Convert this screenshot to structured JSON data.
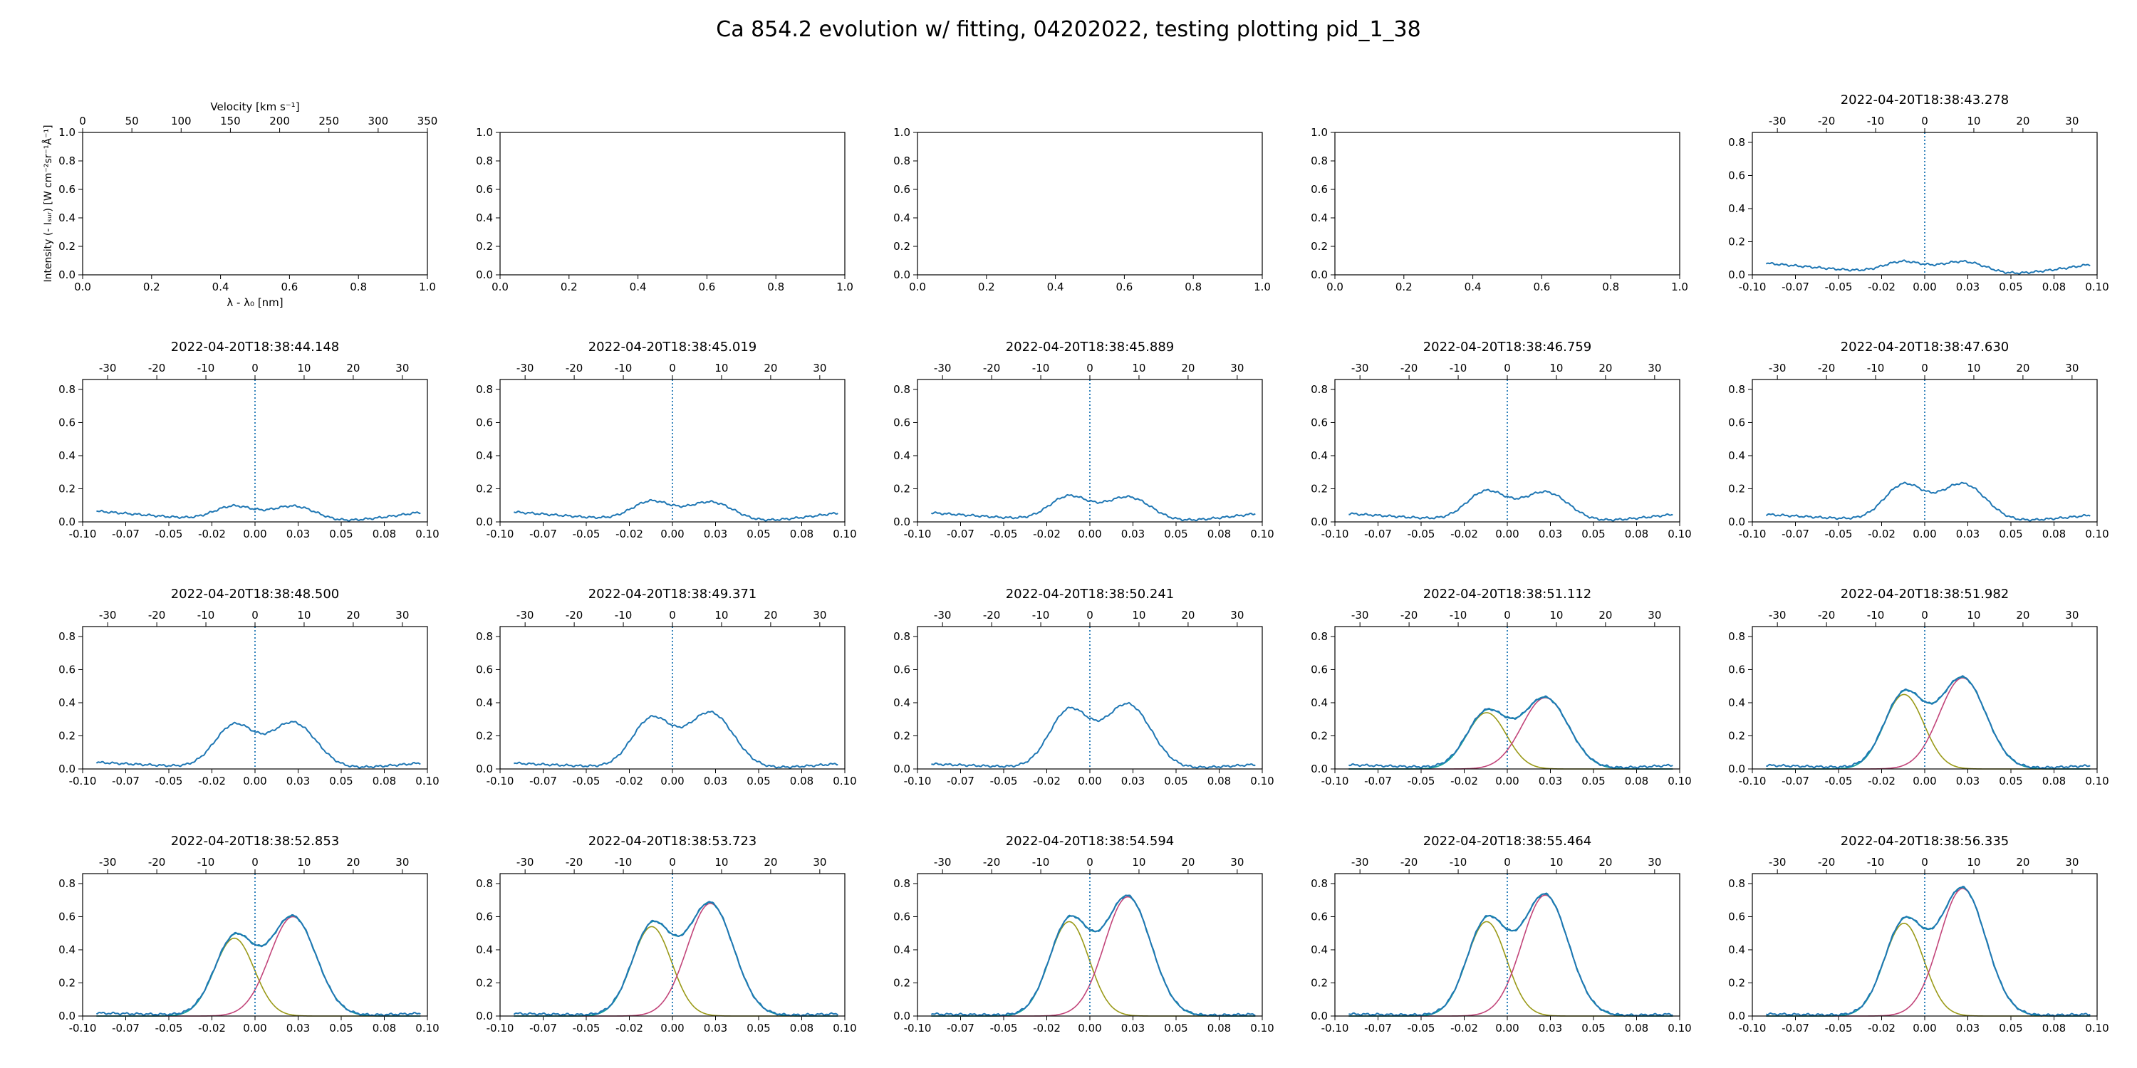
{
  "figure": {
    "title": "Ca 854.2 evolution w/ fitting, 04202022, testing plotting pid_1_38"
  },
  "chart_data": {
    "type": "line",
    "grid": false,
    "layout": "4x5 subplot grid",
    "empty_axis": {
      "x_ticks": [
        "0.0",
        "0.2",
        "0.4",
        "0.6",
        "0.8",
        "1.0"
      ],
      "y_ticks": [
        "0.0",
        "0.2",
        "0.4",
        "0.6",
        "0.8",
        "1.0"
      ],
      "xlim": [
        0,
        1
      ],
      "ylim": [
        0,
        1
      ],
      "top_axis_ticks": [
        "0",
        "50",
        "100",
        "150",
        "200",
        "250",
        "300",
        "350"
      ],
      "top_axis_lim": [
        0,
        350
      ],
      "top_axis_label": "Velocity [km s⁻¹]",
      "xlabel": "λ - λ₀ [nm]",
      "ylabel": "Intensity (- Iₛᵤᵣ) [W cm⁻²sr⁻¹Å⁻¹]"
    },
    "data_axis": {
      "x_ticks": [
        "-0.10",
        "-0.07",
        "-0.05",
        "-0.02",
        "0.00",
        "0.03",
        "0.05",
        "0.08",
        "0.10"
      ],
      "x_tick_values": [
        -0.1,
        -0.075,
        -0.05,
        -0.025,
        0.0,
        0.025,
        0.05,
        0.075,
        0.1
      ],
      "xlim": [
        -0.1,
        0.1
      ],
      "y_ticks": [
        "0.0",
        "0.2",
        "0.4",
        "0.6",
        "0.8"
      ],
      "ylim": [
        0,
        0.86
      ],
      "top_axis_ticks": [
        "-30",
        "-20",
        "-10",
        "0",
        "10",
        "20",
        "30"
      ],
      "top_axis_values": [
        -30,
        -20,
        -10,
        0,
        10,
        20,
        30
      ],
      "top_axis_lim": [
        -35.1,
        35.1
      ],
      "vline_x": 0.0
    },
    "series_colors": {
      "observed": "#1f77b4",
      "fit_total": "#17a2a2",
      "component_blue": "#9a9a18",
      "component_red": "#c2457a",
      "vline": "#1f77b4"
    },
    "panels": [
      {
        "title": "",
        "empty": true
      },
      {
        "title": "",
        "empty": true
      },
      {
        "title": "",
        "empty": true
      },
      {
        "title": "",
        "empty": true
      },
      {
        "title": "2022-04-20T18:38:43.278",
        "h1": 0.075,
        "h2": 0.08,
        "c": 0.07,
        "fit": false
      },
      {
        "title": "2022-04-20T18:38:44.148",
        "h1": 0.09,
        "h2": 0.095,
        "c": 0.065,
        "fit": false
      },
      {
        "title": "2022-04-20T18:38:45.019",
        "h1": 0.12,
        "h2": 0.12,
        "c": 0.06,
        "fit": false
      },
      {
        "title": "2022-04-20T18:38:45.889",
        "h1": 0.15,
        "h2": 0.15,
        "c": 0.055,
        "fit": false
      },
      {
        "title": "2022-04-20T18:38:46.759",
        "h1": 0.18,
        "h2": 0.18,
        "c": 0.05,
        "fit": false
      },
      {
        "title": "2022-04-20T18:38:47.630",
        "h1": 0.22,
        "h2": 0.23,
        "c": 0.045,
        "fit": false
      },
      {
        "title": "2022-04-20T18:38:48.500",
        "h1": 0.26,
        "h2": 0.28,
        "c": 0.04,
        "fit": false
      },
      {
        "title": "2022-04-20T18:38:49.371",
        "h1": 0.3,
        "h2": 0.34,
        "c": 0.035,
        "fit": false
      },
      {
        "title": "2022-04-20T18:38:50.241",
        "h1": 0.35,
        "h2": 0.39,
        "c": 0.03,
        "fit": false
      },
      {
        "title": "2022-04-20T18:38:51.112",
        "h1": 0.34,
        "h2": 0.43,
        "c": 0.025,
        "fit": true
      },
      {
        "title": "2022-04-20T18:38:51.982",
        "h1": 0.45,
        "h2": 0.55,
        "c": 0.022,
        "fit": true
      },
      {
        "title": "2022-04-20T18:38:52.853",
        "h1": 0.47,
        "h2": 0.6,
        "c": 0.018,
        "fit": true
      },
      {
        "title": "2022-04-20T18:38:53.723",
        "h1": 0.54,
        "h2": 0.68,
        "c": 0.015,
        "fit": true
      },
      {
        "title": "2022-04-20T18:38:54.594",
        "h1": 0.57,
        "h2": 0.72,
        "c": 0.012,
        "fit": true
      },
      {
        "title": "2022-04-20T18:38:55.464",
        "h1": 0.57,
        "h2": 0.73,
        "c": 0.012,
        "fit": true
      },
      {
        "title": "2022-04-20T18:38:56.335",
        "h1": 0.56,
        "h2": 0.77,
        "c": 0.012,
        "fit": true
      }
    ]
  }
}
